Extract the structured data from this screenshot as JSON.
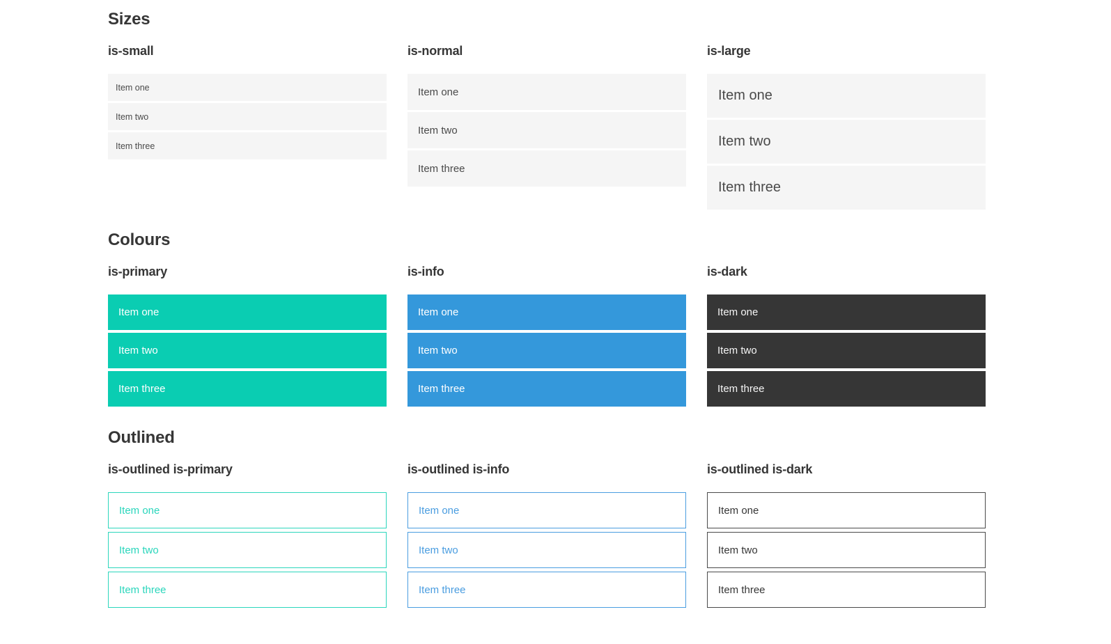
{
  "colors": {
    "primary": "#0acdb2",
    "info": "#3498db",
    "dark": "#363636",
    "primary_outline": "#2bd6bc",
    "info_outline": "#4a9de0",
    "dark_outline": "#4a4a4a",
    "item_bg": "#f5f5f5",
    "item_text": "#4a4a4a",
    "heading_text": "#363636",
    "page_bg": "#ffffff"
  },
  "sections": [
    {
      "title": "Sizes",
      "groups": [
        {
          "heading": "is-small",
          "items": [
            "Item one",
            "Item two",
            "Item three"
          ]
        },
        {
          "heading": "is-normal",
          "items": [
            "Item one",
            "Item two",
            "Item three"
          ]
        },
        {
          "heading": "is-large",
          "items": [
            "Item one",
            "Item two",
            "Item three"
          ]
        }
      ]
    },
    {
      "title": "Colours",
      "groups": [
        {
          "heading": "is-primary",
          "items": [
            "Item one",
            "Item two",
            "Item three"
          ]
        },
        {
          "heading": "is-info",
          "items": [
            "Item one",
            "Item two",
            "Item three"
          ]
        },
        {
          "heading": "is-dark",
          "items": [
            "Item one",
            "Item two",
            "Item three"
          ]
        }
      ]
    },
    {
      "title": "Outlined",
      "groups": [
        {
          "heading": "is-outlined is-primary",
          "items": [
            "Item one",
            "Item two",
            "Item three"
          ]
        },
        {
          "heading": "is-outlined is-info",
          "items": [
            "Item one",
            "Item two",
            "Item three"
          ]
        },
        {
          "heading": "is-outlined is-dark",
          "items": [
            "Item one",
            "Item two",
            "Item three"
          ]
        }
      ]
    }
  ]
}
